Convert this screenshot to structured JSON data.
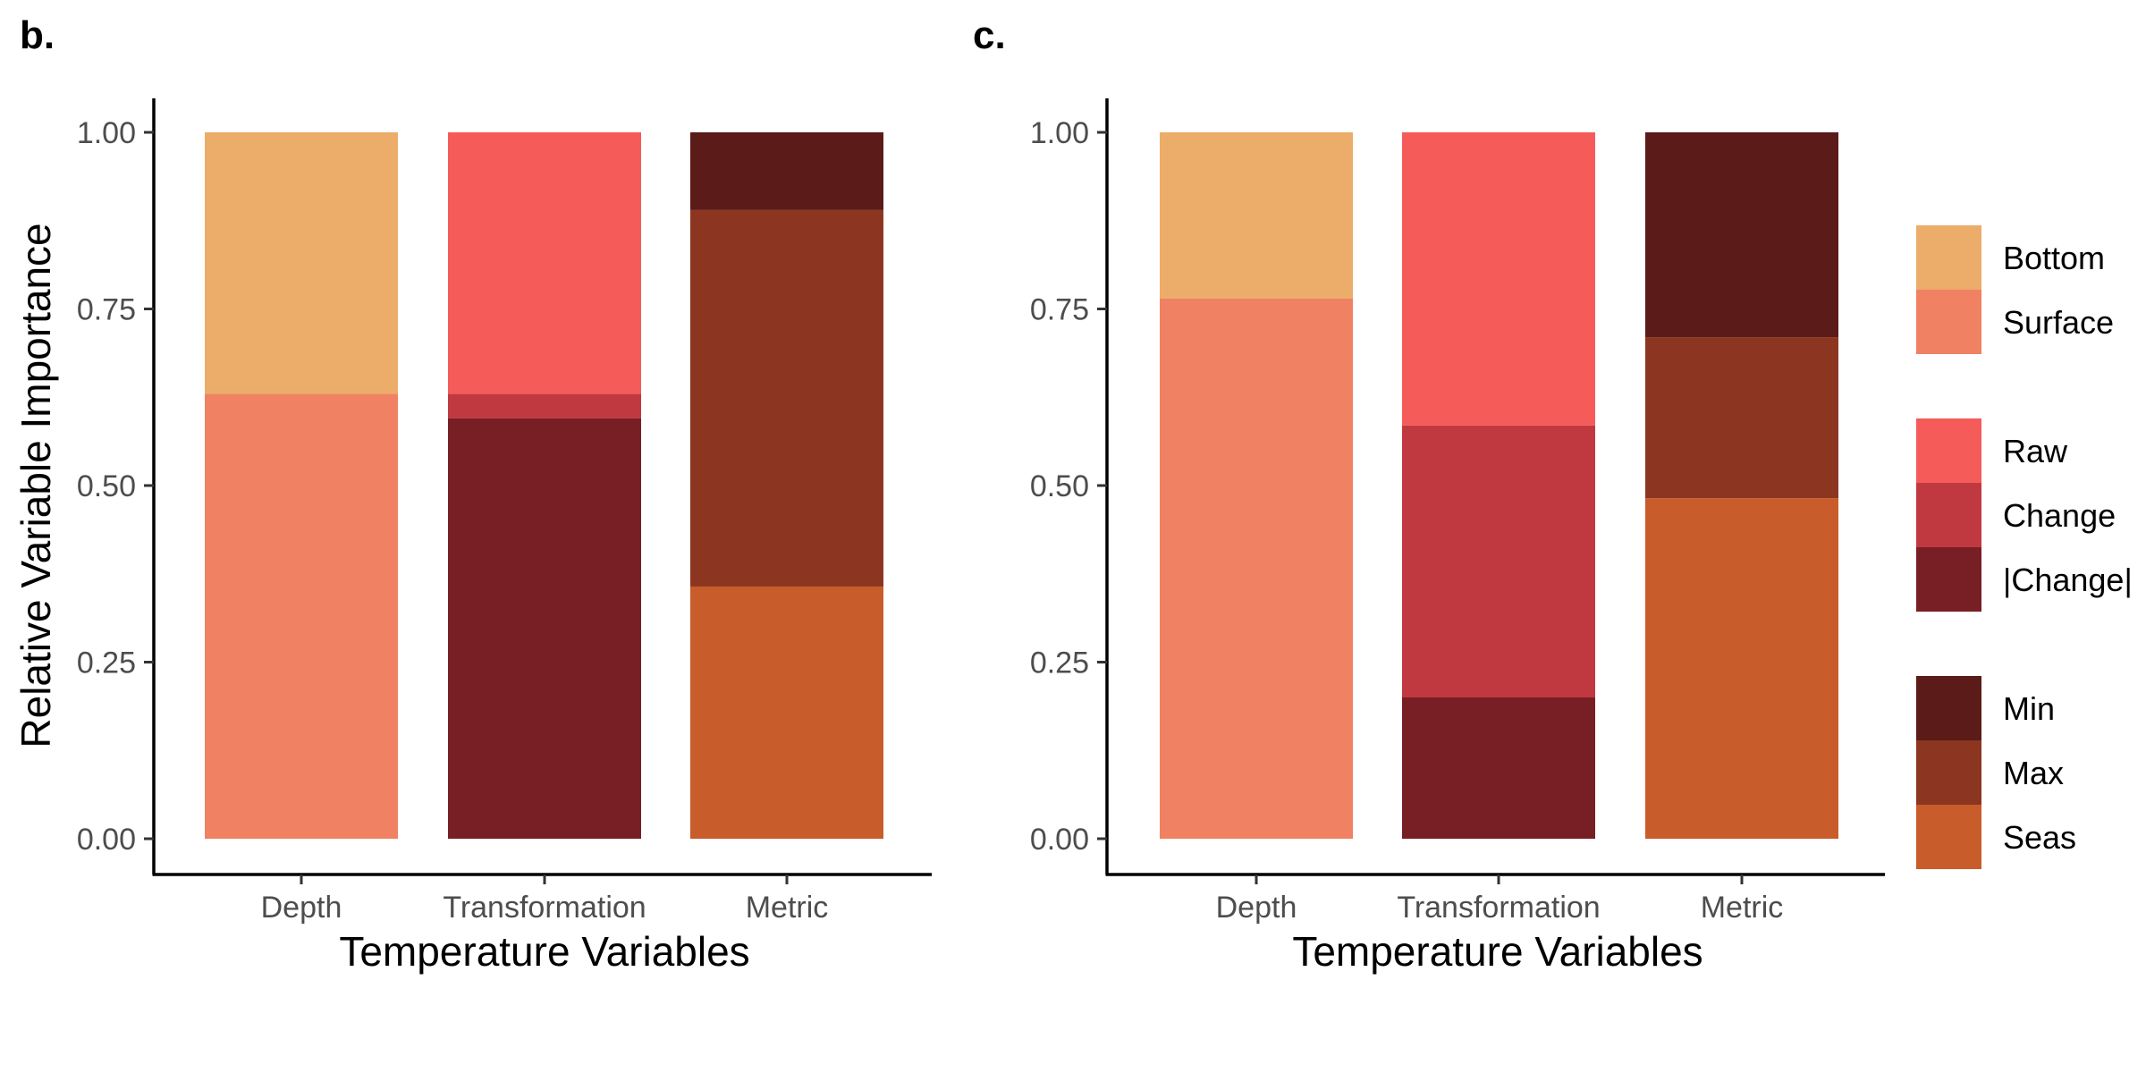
{
  "chart_data": [
    {
      "type": "bar",
      "stacked": true,
      "panel_label": "b.",
      "categories": [
        "Depth",
        "Transformation",
        "Metric"
      ],
      "xlabel": "Temperature Variables",
      "ylabel": "Relative Variable Importance",
      "ylim": [
        0,
        1
      ],
      "yticks": [
        "0.00",
        "0.25",
        "0.50",
        "0.75",
        "1.00"
      ],
      "grid": false,
      "stacks": [
        {
          "category": "Depth",
          "segments": [
            {
              "name": "Surface",
              "value": 0.63
            },
            {
              "name": "Bottom",
              "value": 0.37
            }
          ]
        },
        {
          "category": "Transformation",
          "segments": [
            {
              "name": "|Change|",
              "value": 0.595
            },
            {
              "name": "Change",
              "value": 0.035
            },
            {
              "name": "Raw",
              "value": 0.37
            }
          ]
        },
        {
          "category": "Metric",
          "segments": [
            {
              "name": "Seas",
              "value": 0.357
            },
            {
              "name": "Max",
              "value": 0.533
            },
            {
              "name": "Min",
              "value": 0.11
            }
          ]
        }
      ]
    },
    {
      "type": "bar",
      "stacked": true,
      "panel_label": "c.",
      "categories": [
        "Depth",
        "Transformation",
        "Metric"
      ],
      "xlabel": "Temperature Variables",
      "ylabel": "",
      "ylim": [
        0,
        1
      ],
      "yticks": [
        "0.00",
        "0.25",
        "0.50",
        "0.75",
        "1.00"
      ],
      "grid": false,
      "stacks": [
        {
          "category": "Depth",
          "segments": [
            {
              "name": "Surface",
              "value": 0.765
            },
            {
              "name": "Bottom",
              "value": 0.235
            }
          ]
        },
        {
          "category": "Transformation",
          "segments": [
            {
              "name": "|Change|",
              "value": 0.2
            },
            {
              "name": "Change",
              "value": 0.385
            },
            {
              "name": "Raw",
              "value": 0.415
            }
          ]
        },
        {
          "category": "Metric",
          "segments": [
            {
              "name": "Seas",
              "value": 0.482
            },
            {
              "name": "Max",
              "value": 0.228
            },
            {
              "name": "Min",
              "value": 0.29
            }
          ]
        }
      ]
    }
  ],
  "legend": {
    "placement": "right",
    "groups": [
      {
        "items": [
          {
            "name": "Bottom",
            "color": "#EBAD69"
          },
          {
            "name": "Surface",
            "color": "#F08163"
          }
        ]
      },
      {
        "items": [
          {
            "name": "Raw",
            "color": "#F55B59"
          },
          {
            "name": "Change",
            "color": "#C13940"
          },
          {
            "name": "|Change|",
            "color": "#771F24"
          }
        ]
      },
      {
        "items": [
          {
            "name": "Min",
            "color": "#5B1B18"
          },
          {
            "name": "Max",
            "color": "#8C3621"
          },
          {
            "name": "Seas",
            "color": "#C95C2B"
          }
        ]
      }
    ]
  }
}
